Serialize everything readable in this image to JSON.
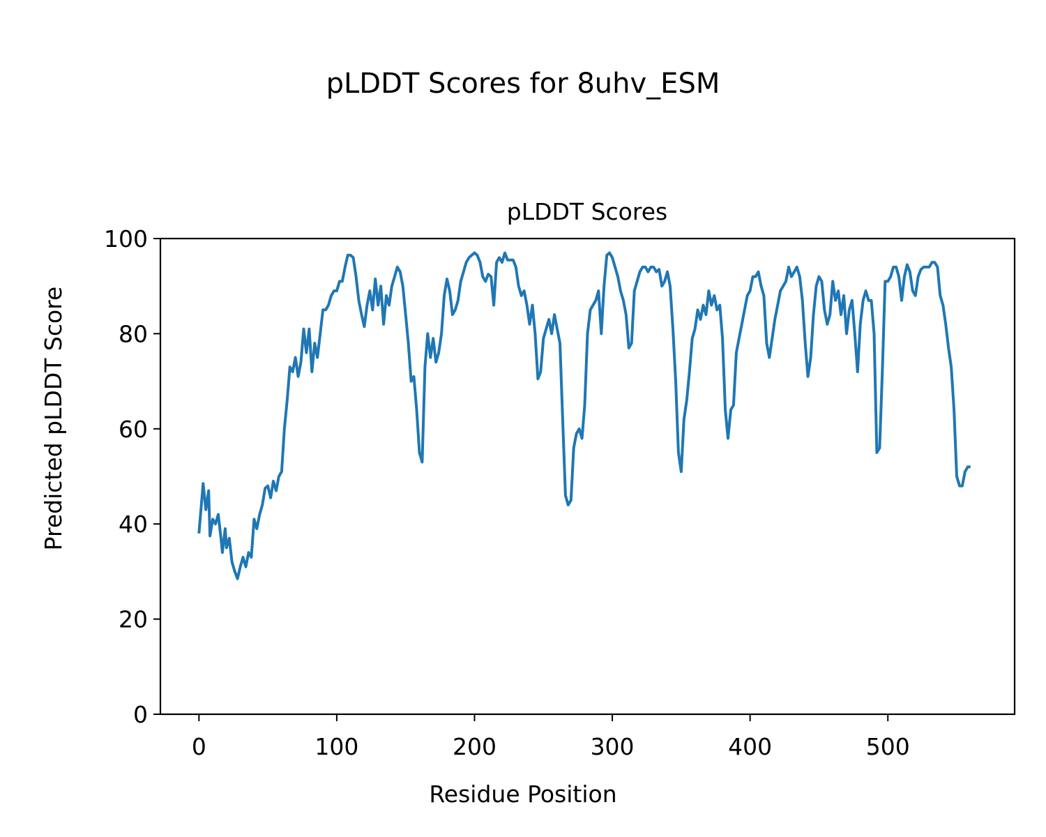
{
  "chart_data": {
    "type": "line",
    "suptitle": "pLDDT Scores for 8uhv_ESM",
    "title": "pLDDT Scores",
    "xlabel": "Residue Position",
    "ylabel": "Predicted pLDDT Score",
    "xlim": [
      -28,
      592
    ],
    "ylim": [
      0,
      100
    ],
    "xticks": [
      0,
      100,
      200,
      300,
      400,
      500
    ],
    "yticks": [
      0,
      20,
      40,
      60,
      80,
      100
    ],
    "grid": false,
    "legend": "none",
    "line_color": "#1f77b4",
    "series": [
      {
        "points": [
          [
            0,
            38
          ],
          [
            2,
            45
          ],
          [
            3,
            48.5
          ],
          [
            5,
            43
          ],
          [
            7,
            47
          ],
          [
            8,
            37.5
          ],
          [
            10,
            41
          ],
          [
            12,
            40
          ],
          [
            14,
            42
          ],
          [
            16,
            37
          ],
          [
            17,
            34
          ],
          [
            19,
            39
          ],
          [
            20,
            35
          ],
          [
            22,
            37
          ],
          [
            24,
            32
          ],
          [
            26,
            30
          ],
          [
            28,
            28.5
          ],
          [
            30,
            31
          ],
          [
            32,
            33
          ],
          [
            34,
            31
          ],
          [
            36,
            34
          ],
          [
            38,
            33
          ],
          [
            40,
            41
          ],
          [
            42,
            39
          ],
          [
            44,
            42
          ],
          [
            46,
            44
          ],
          [
            48,
            47.5
          ],
          [
            50,
            48
          ],
          [
            52,
            45.5
          ],
          [
            54,
            49
          ],
          [
            56,
            47
          ],
          [
            58,
            50
          ],
          [
            60,
            51
          ],
          [
            62,
            60
          ],
          [
            64,
            66
          ],
          [
            66,
            73
          ],
          [
            68,
            72
          ],
          [
            70,
            75
          ],
          [
            72,
            71
          ],
          [
            74,
            74
          ],
          [
            76,
            81
          ],
          [
            78,
            76
          ],
          [
            80,
            81
          ],
          [
            82,
            72
          ],
          [
            84,
            78
          ],
          [
            86,
            75
          ],
          [
            88,
            80
          ],
          [
            90,
            85
          ],
          [
            92,
            85
          ],
          [
            94,
            86
          ],
          [
            96,
            88
          ],
          [
            98,
            89
          ],
          [
            100,
            89
          ],
          [
            102,
            91
          ],
          [
            104,
            91
          ],
          [
            106,
            94
          ],
          [
            108,
            96.5
          ],
          [
            110,
            96.5
          ],
          [
            112,
            96
          ],
          [
            114,
            92
          ],
          [
            116,
            87
          ],
          [
            118,
            84
          ],
          [
            120,
            81.5
          ],
          [
            122,
            86
          ],
          [
            124,
            89
          ],
          [
            126,
            85
          ],
          [
            128,
            91.5
          ],
          [
            130,
            86
          ],
          [
            132,
            90
          ],
          [
            134,
            82
          ],
          [
            136,
            88
          ],
          [
            138,
            86
          ],
          [
            140,
            90
          ],
          [
            142,
            92
          ],
          [
            144,
            94
          ],
          [
            146,
            93
          ],
          [
            148,
            90
          ],
          [
            150,
            84
          ],
          [
            152,
            78
          ],
          [
            154,
            70
          ],
          [
            156,
            71
          ],
          [
            158,
            64
          ],
          [
            160,
            55
          ],
          [
            162,
            53
          ],
          [
            164,
            73
          ],
          [
            166,
            80
          ],
          [
            168,
            75
          ],
          [
            170,
            79
          ],
          [
            172,
            74
          ],
          [
            174,
            76
          ],
          [
            176,
            80
          ],
          [
            178,
            88
          ],
          [
            180,
            91.5
          ],
          [
            182,
            89
          ],
          [
            184,
            84
          ],
          [
            186,
            85
          ],
          [
            188,
            87
          ],
          [
            190,
            91
          ],
          [
            192,
            93
          ],
          [
            194,
            95
          ],
          [
            196,
            96
          ],
          [
            198,
            96.5
          ],
          [
            200,
            97
          ],
          [
            202,
            96.5
          ],
          [
            204,
            95
          ],
          [
            206,
            92
          ],
          [
            208,
            91
          ],
          [
            210,
            92.5
          ],
          [
            212,
            92
          ],
          [
            214,
            86
          ],
          [
            216,
            95
          ],
          [
            218,
            96
          ],
          [
            220,
            95
          ],
          [
            222,
            97
          ],
          [
            224,
            95.5
          ],
          [
            226,
            95.5
          ],
          [
            228,
            95.5
          ],
          [
            230,
            94
          ],
          [
            232,
            90
          ],
          [
            234,
            88
          ],
          [
            236,
            89
          ],
          [
            238,
            86
          ],
          [
            240,
            82
          ],
          [
            242,
            86
          ],
          [
            244,
            80
          ],
          [
            246,
            70.5
          ],
          [
            248,
            72
          ],
          [
            250,
            79
          ],
          [
            252,
            81
          ],
          [
            254,
            83
          ],
          [
            256,
            80
          ],
          [
            258,
            84
          ],
          [
            260,
            81
          ],
          [
            262,
            78
          ],
          [
            264,
            62
          ],
          [
            266,
            46
          ],
          [
            268,
            44
          ],
          [
            270,
            45
          ],
          [
            272,
            56
          ],
          [
            274,
            59
          ],
          [
            276,
            60
          ],
          [
            278,
            58
          ],
          [
            280,
            65
          ],
          [
            282,
            80
          ],
          [
            284,
            85
          ],
          [
            286,
            86
          ],
          [
            288,
            87
          ],
          [
            290,
            89
          ],
          [
            292,
            80
          ],
          [
            294,
            90
          ],
          [
            296,
            96.5
          ],
          [
            298,
            97
          ],
          [
            300,
            96
          ],
          [
            302,
            94
          ],
          [
            304,
            92
          ],
          [
            306,
            89
          ],
          [
            308,
            87
          ],
          [
            310,
            84
          ],
          [
            312,
            77
          ],
          [
            314,
            78
          ],
          [
            316,
            89
          ],
          [
            318,
            91
          ],
          [
            320,
            93
          ],
          [
            322,
            94
          ],
          [
            324,
            94
          ],
          [
            326,
            93
          ],
          [
            328,
            94
          ],
          [
            330,
            94
          ],
          [
            332,
            93
          ],
          [
            334,
            93.5
          ],
          [
            336,
            90
          ],
          [
            338,
            91
          ],
          [
            340,
            93
          ],
          [
            342,
            90
          ],
          [
            344,
            81
          ],
          [
            346,
            70
          ],
          [
            348,
            55
          ],
          [
            350,
            51
          ],
          [
            352,
            62
          ],
          [
            354,
            66
          ],
          [
            356,
            72
          ],
          [
            358,
            79
          ],
          [
            360,
            81
          ],
          [
            362,
            85
          ],
          [
            364,
            83
          ],
          [
            366,
            86
          ],
          [
            368,
            84
          ],
          [
            370,
            89
          ],
          [
            372,
            86
          ],
          [
            374,
            88
          ],
          [
            376,
            85
          ],
          [
            378,
            86
          ],
          [
            380,
            79
          ],
          [
            382,
            64
          ],
          [
            384,
            58
          ],
          [
            386,
            64
          ],
          [
            388,
            65
          ],
          [
            390,
            76
          ],
          [
            392,
            79
          ],
          [
            394,
            82
          ],
          [
            396,
            85
          ],
          [
            398,
            88
          ],
          [
            400,
            89
          ],
          [
            402,
            92
          ],
          [
            404,
            92
          ],
          [
            406,
            93
          ],
          [
            408,
            90
          ],
          [
            410,
            88
          ],
          [
            412,
            78
          ],
          [
            414,
            75
          ],
          [
            416,
            79
          ],
          [
            418,
            83
          ],
          [
            420,
            86
          ],
          [
            422,
            89
          ],
          [
            424,
            90
          ],
          [
            426,
            91
          ],
          [
            428,
            94
          ],
          [
            430,
            92
          ],
          [
            432,
            93
          ],
          [
            434,
            94
          ],
          [
            436,
            92
          ],
          [
            438,
            87
          ],
          [
            440,
            78
          ],
          [
            442,
            71
          ],
          [
            444,
            75
          ],
          [
            446,
            84
          ],
          [
            448,
            90
          ],
          [
            450,
            92
          ],
          [
            452,
            91
          ],
          [
            454,
            85
          ],
          [
            456,
            82
          ],
          [
            458,
            84
          ],
          [
            460,
            91
          ],
          [
            462,
            87
          ],
          [
            464,
            89
          ],
          [
            466,
            84
          ],
          [
            468,
            88
          ],
          [
            470,
            80
          ],
          [
            472,
            85
          ],
          [
            474,
            87
          ],
          [
            476,
            80
          ],
          [
            478,
            72
          ],
          [
            480,
            82
          ],
          [
            482,
            87
          ],
          [
            484,
            89
          ],
          [
            486,
            87
          ],
          [
            488,
            87
          ],
          [
            490,
            80
          ],
          [
            492,
            55
          ],
          [
            494,
            56
          ],
          [
            496,
            72
          ],
          [
            498,
            91
          ],
          [
            500,
            91
          ],
          [
            502,
            92
          ],
          [
            504,
            94
          ],
          [
            506,
            94
          ],
          [
            508,
            92
          ],
          [
            510,
            87
          ],
          [
            512,
            92
          ],
          [
            514,
            94.5
          ],
          [
            516,
            93
          ],
          [
            518,
            89
          ],
          [
            520,
            88
          ],
          [
            522,
            92
          ],
          [
            524,
            93.5
          ],
          [
            526,
            94
          ],
          [
            528,
            94
          ],
          [
            530,
            94
          ],
          [
            532,
            95
          ],
          [
            534,
            95
          ],
          [
            536,
            94
          ],
          [
            538,
            88
          ],
          [
            540,
            86
          ],
          [
            542,
            82
          ],
          [
            544,
            77
          ],
          [
            546,
            73
          ],
          [
            548,
            64
          ],
          [
            550,
            50
          ],
          [
            552,
            48
          ],
          [
            554,
            48
          ],
          [
            556,
            51
          ],
          [
            558,
            52
          ],
          [
            560,
            52
          ]
        ]
      }
    ]
  }
}
